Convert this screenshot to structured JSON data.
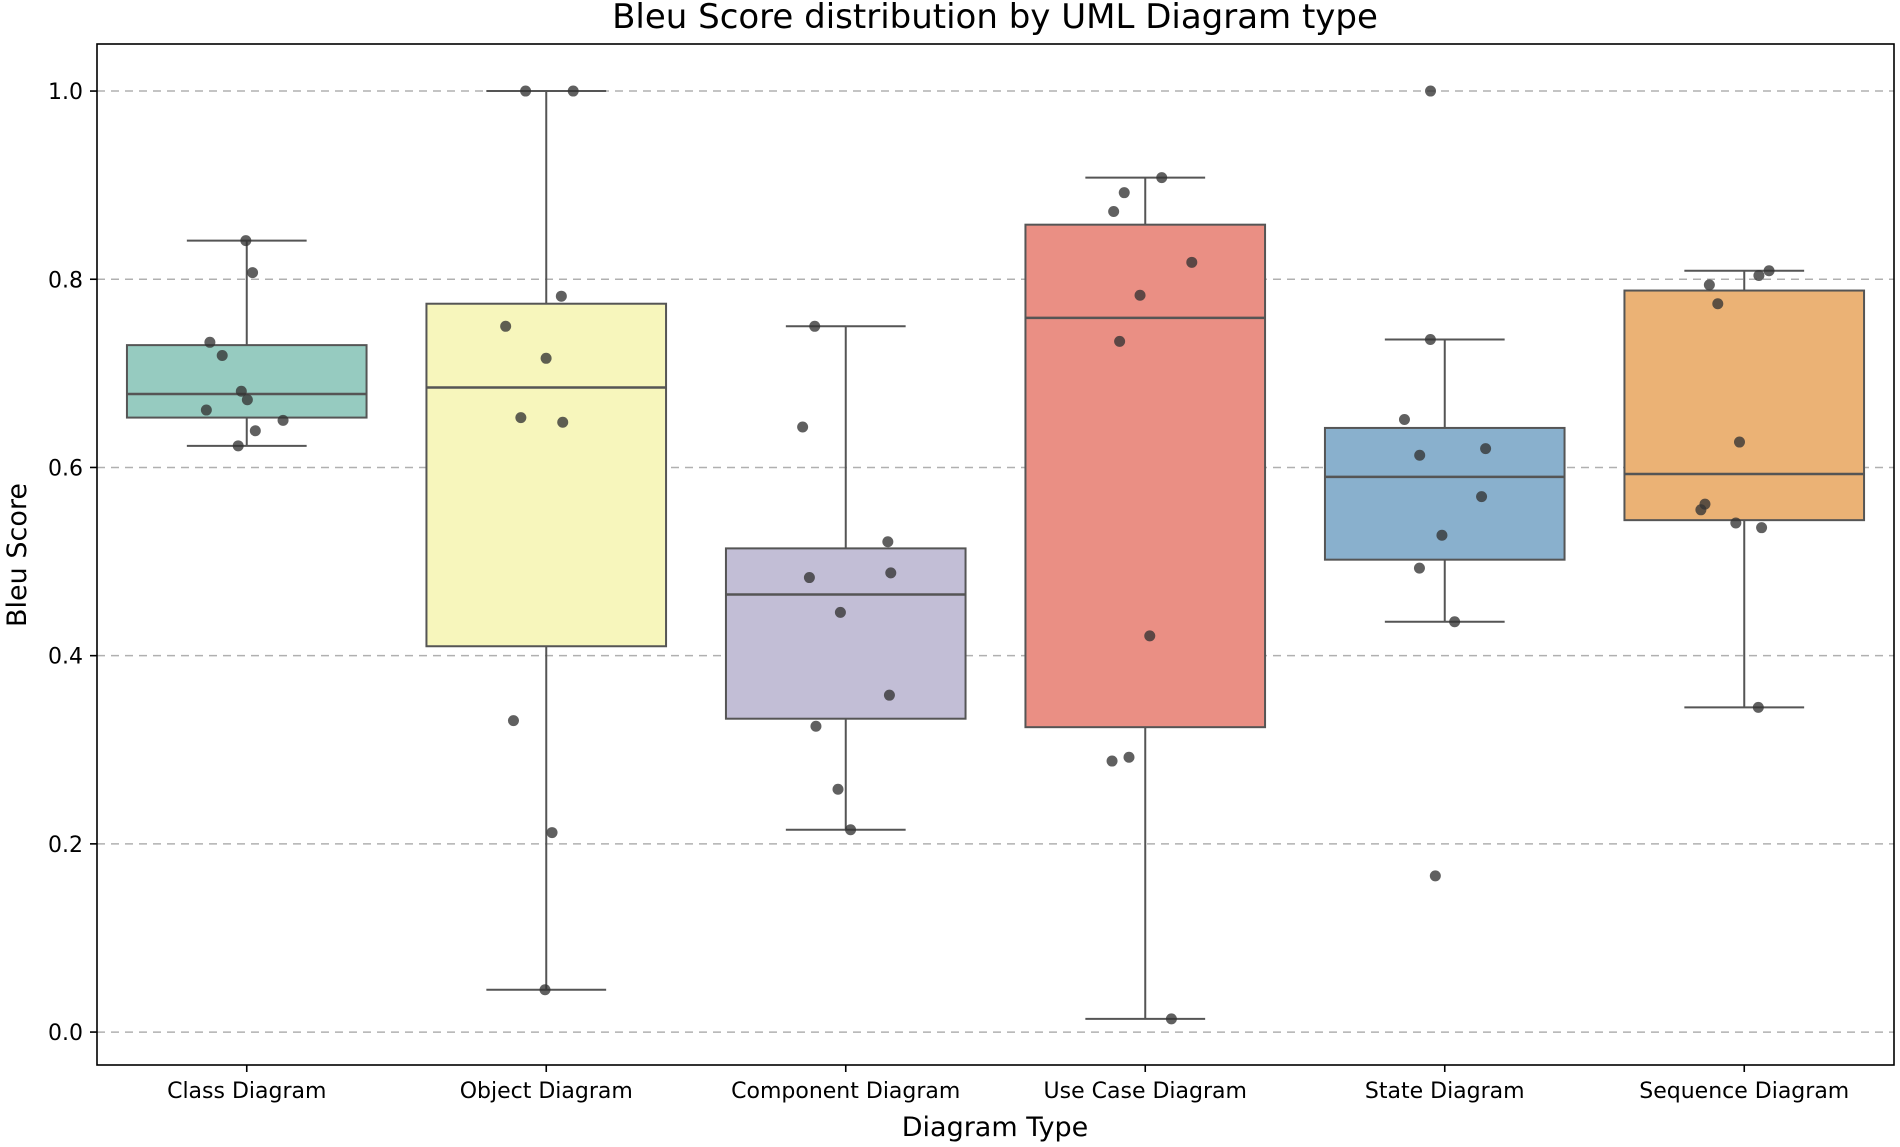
{
  "chart_data": {
    "type": "box",
    "title": "Bleu Score distribution by UML Diagram type",
    "xlabel": "Diagram Type",
    "ylabel": "Bleu Score",
    "ylim": [
      -0.035,
      1.05
    ],
    "yticks": [
      "0.0",
      "0.2",
      "0.4",
      "0.6",
      "0.8",
      "1.0"
    ],
    "ytick_values": [
      0.0,
      0.2,
      0.4,
      0.6,
      0.8,
      1.0
    ],
    "grid": "y, dashed",
    "categories": [
      "Class Diagram",
      "Object Diagram",
      "Component Diagram",
      "Use Case Diagram",
      "State Diagram",
      "Sequence Diagram"
    ],
    "colors": [
      "#96cbc0",
      "#f7f6bc",
      "#c2bed6",
      "#ea8f84",
      "#89b0cd",
      "#ebb275"
    ],
    "boxes": [
      {
        "name": "Class Diagram",
        "whisker_low": 0.623,
        "q1": 0.653,
        "median": 0.678,
        "q3": 0.73,
        "whisker_high": 0.841
      },
      {
        "name": "Object Diagram",
        "whisker_low": 0.045,
        "q1": 0.41,
        "median": 0.685,
        "q3": 0.774,
        "whisker_high": 1.0
      },
      {
        "name": "Component Diagram",
        "whisker_low": 0.215,
        "q1": 0.333,
        "median": 0.465,
        "q3": 0.514,
        "whisker_high": 0.75
      },
      {
        "name": "Use Case Diagram",
        "whisker_low": 0.014,
        "q1": 0.324,
        "median": 0.759,
        "q3": 0.858,
        "whisker_high": 0.908
      },
      {
        "name": "State Diagram",
        "whisker_low": 0.436,
        "q1": 0.502,
        "median": 0.59,
        "q3": 0.642,
        "whisker_high": 0.736
      },
      {
        "name": "Sequence Diagram",
        "whisker_low": 0.345,
        "q1": 0.544,
        "median": 0.593,
        "q3": 0.788,
        "whisker_high": 0.809
      }
    ],
    "points": [
      {
        "category": "Class Diagram",
        "values": [
          0.841,
          0.807,
          0.733,
          0.719,
          0.681,
          0.672,
          0.661,
          0.65,
          0.639,
          0.623
        ]
      },
      {
        "category": "Object Diagram",
        "values": [
          1.0,
          1.0,
          0.782,
          0.75,
          0.716,
          0.653,
          0.648,
          0.331,
          0.212,
          0.045
        ]
      },
      {
        "category": "Component Diagram",
        "values": [
          0.75,
          0.643,
          0.521,
          0.488,
          0.483,
          0.446,
          0.358,
          0.325,
          0.258,
          0.215
        ]
      },
      {
        "category": "Use Case Diagram",
        "values": [
          0.908,
          0.892,
          0.872,
          0.818,
          0.783,
          0.734,
          0.421,
          0.292,
          0.288,
          0.014
        ]
      },
      {
        "category": "State Diagram",
        "values": [
          1.0,
          0.736,
          0.651,
          0.62,
          0.613,
          0.569,
          0.528,
          0.493,
          0.436,
          0.166
        ]
      },
      {
        "category": "Sequence Diagram",
        "values": [
          0.809,
          0.804,
          0.794,
          0.774,
          0.627,
          0.561,
          0.555,
          0.541,
          0.536,
          0.345
        ]
      }
    ]
  }
}
